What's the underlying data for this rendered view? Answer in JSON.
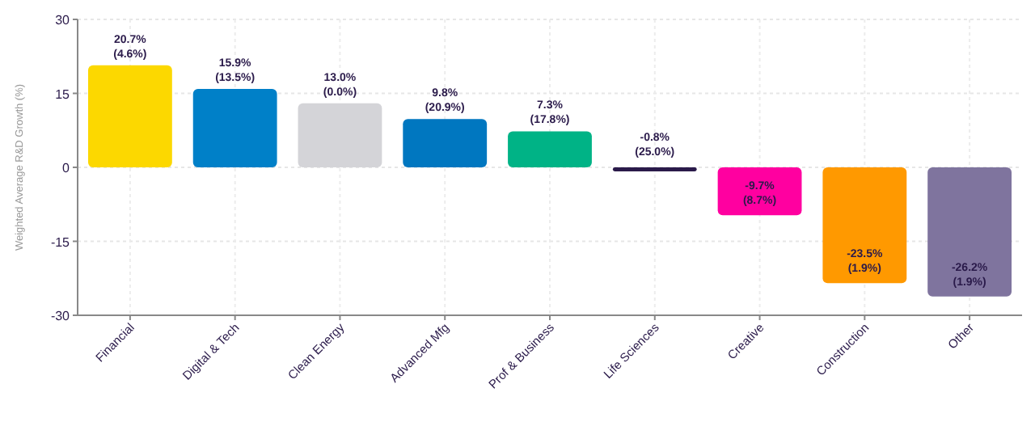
{
  "chart_data": {
    "type": "bar",
    "ylabel": "Weighted Average R&D Growth (%)",
    "categories": [
      "Financial",
      "Digital & Tech",
      "Clean Energy",
      "Advanced Mfg",
      "Prof & Business",
      "Life Sciences",
      "Creative",
      "Construction",
      "Other"
    ],
    "values": [
      20.7,
      15.9,
      13.0,
      9.8,
      7.3,
      -0.8,
      -9.7,
      -23.5,
      -26.2
    ],
    "colors": [
      "#fcd800",
      "#0080c8",
      "#d4d4d8",
      "#0077c0",
      "#00b386",
      "#2a1a4a",
      "#ff00a0",
      "#ff9900",
      "#7f749e"
    ],
    "value_labels": [
      "20.7%\n(4.6%)",
      "15.9%\n(13.5%)",
      "13.0%\n(0.0%)",
      "9.8%\n(20.9%)",
      "7.3%\n(17.8%)",
      "-0.8%\n(25.0%)",
      "-9.7%\n(8.7%)",
      "-23.5%\n(1.9%)",
      "-26.2%\n(1.9%)"
    ],
    "ylim": [
      -30,
      30
    ],
    "yticks": [
      -30,
      -15,
      0,
      15,
      30
    ],
    "grid": true
  }
}
